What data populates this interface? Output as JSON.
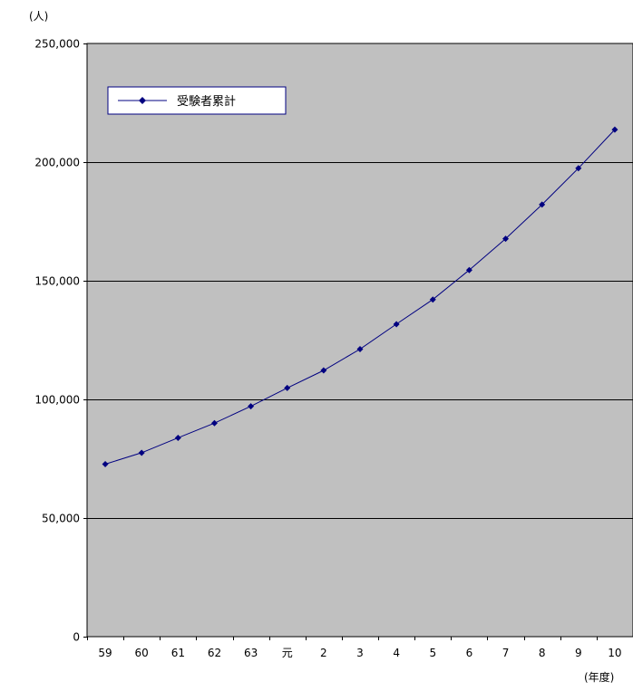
{
  "chart_data": {
    "type": "line",
    "title": "",
    "ylabel": "(人)",
    "xlabel": "(年度)",
    "categories": [
      "59",
      "60",
      "61",
      "62",
      "63",
      "元",
      "2",
      "3",
      "4",
      "5",
      "6",
      "7",
      "8",
      "9",
      "10"
    ],
    "series": [
      {
        "name": "受験者累計",
        "values": [
          72700,
          77500,
          83800,
          90000,
          97100,
          104800,
          112200,
          121200,
          131700,
          142100,
          154500,
          167700,
          182100,
          197400,
          213700
        ],
        "color": "#000080",
        "marker": "diamond"
      }
    ],
    "ylim": [
      0,
      250000
    ],
    "yticks": [
      0,
      50000,
      100000,
      150000,
      200000,
      250000
    ],
    "ytick_labels": [
      "0",
      "50,000",
      "100,000",
      "150,000",
      "200,000",
      "250,000"
    ],
    "grid": true,
    "plot_background": "#c0c0c0",
    "gridline_color": "#000000",
    "legend_placement": "top-left"
  }
}
